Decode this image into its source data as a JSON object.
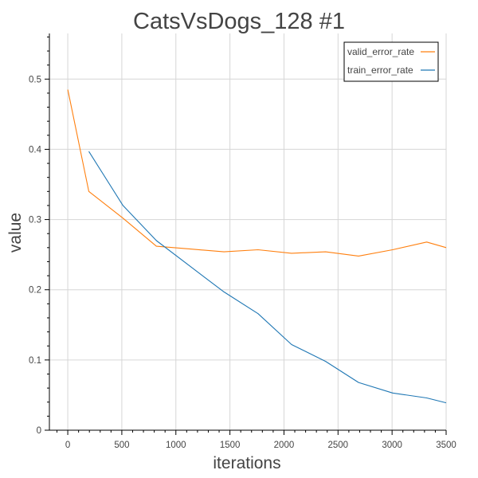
{
  "chart_data": {
    "type": "line",
    "title": "CatsVsDogs_128 #1",
    "xlabel": "iterations",
    "ylabel": "value",
    "xlim": [
      -170,
      3500
    ],
    "ylim": [
      0,
      0.565
    ],
    "grid": true,
    "legend_position": "top-right",
    "x_ticks": [
      0,
      500,
      1000,
      1500,
      2000,
      2500,
      3000,
      3500
    ],
    "x_tick_labels": [
      "0",
      "500",
      "1000",
      "1500",
      "2000",
      "2500",
      "3000",
      "3500"
    ],
    "y_ticks": [
      0,
      0.1,
      0.2,
      0.3,
      0.4,
      0.5
    ],
    "y_tick_labels": [
      "0",
      "0.1",
      "0.2",
      "0.3",
      "0.4",
      "0.5"
    ],
    "series": [
      {
        "name": "valid_error_rate",
        "color": "#ff7f0e",
        "x": [
          0,
          195,
          510,
          820,
          1135,
          1445,
          1760,
          2070,
          2385,
          2690,
          3005,
          3320,
          3500
        ],
        "y": [
          0.485,
          0.34,
          0.302,
          0.262,
          0.258,
          0.254,
          0.257,
          0.252,
          0.254,
          0.248,
          0.257,
          0.268,
          0.26
        ]
      },
      {
        "name": "train_error_rate",
        "color": "#1f77b4",
        "x": [
          195,
          510,
          820,
          1135,
          1445,
          1760,
          2070,
          2385,
          2690,
          3005,
          3320,
          3500
        ],
        "y": [
          0.397,
          0.32,
          0.27,
          0.233,
          0.197,
          0.166,
          0.122,
          0.098,
          0.068,
          0.053,
          0.046,
          0.039
        ]
      }
    ]
  }
}
